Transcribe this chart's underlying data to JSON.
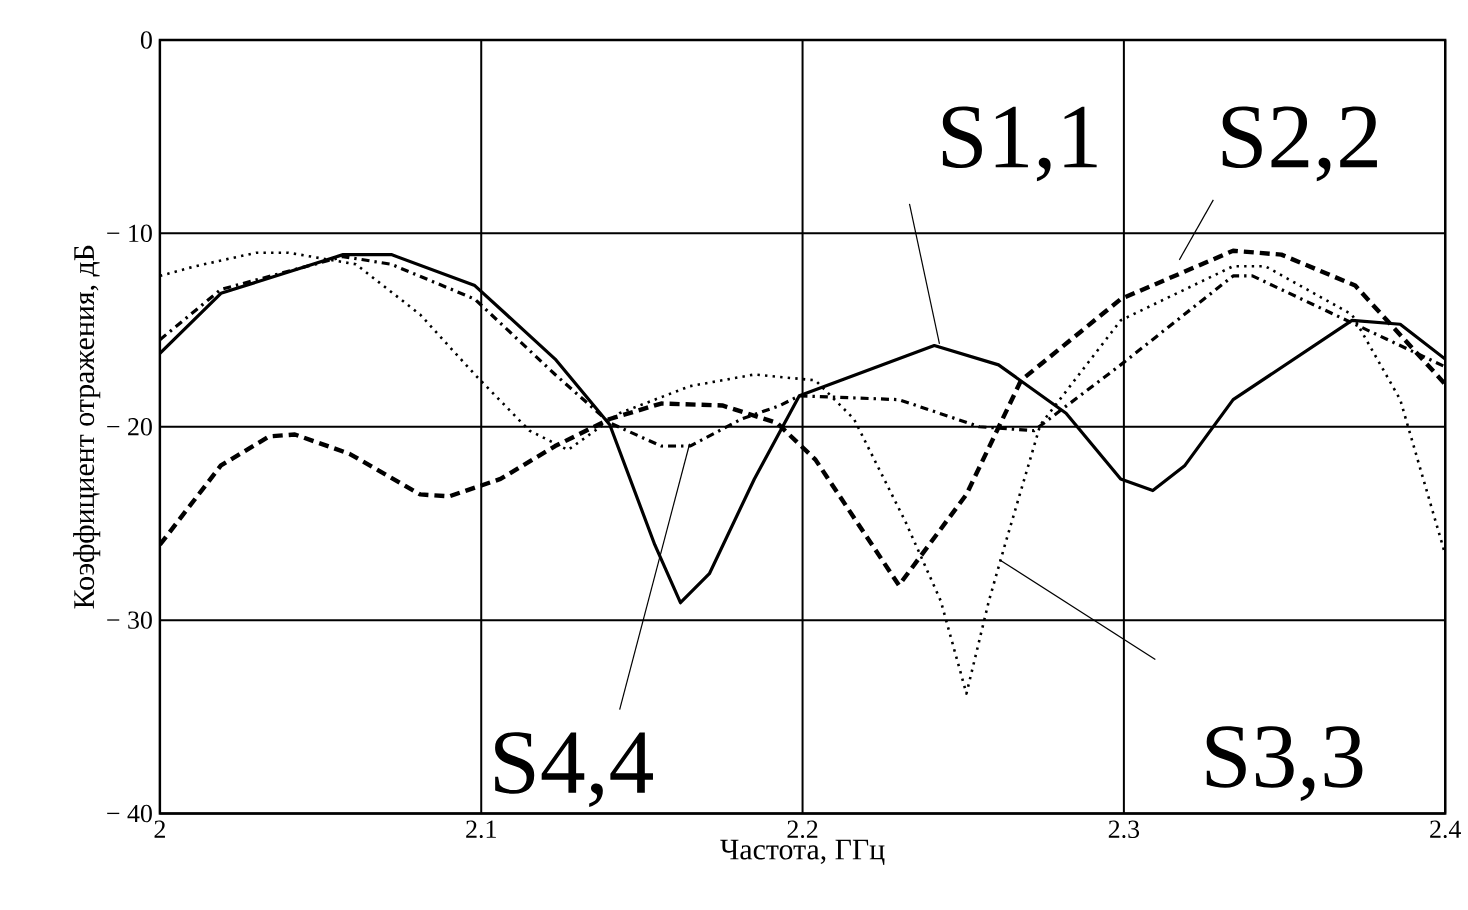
{
  "chart_data": {
    "type": "line",
    "xlabel": "Частота, ГГц",
    "ylabel": "Коэффициент отражения, дБ",
    "xlim": [
      2,
      2.4
    ],
    "ylim": [
      -40,
      0
    ],
    "xticks": [
      2,
      2.1,
      2.2,
      2.3,
      2.4
    ],
    "yticks": [
      {
        "value": -40,
        "label": "− 40"
      },
      {
        "value": -30,
        "label": "− 30"
      },
      {
        "value": -20,
        "label": "− 20"
      },
      {
        "value": -10,
        "label": "− 10"
      },
      0
    ],
    "grid": true,
    "legend": false,
    "series": [
      {
        "name": "S1,1",
        "color": "#000000",
        "line_style": "solid",
        "x": [
          2.0,
          2.019,
          2.057,
          2.072,
          2.098,
          2.123,
          2.14,
          2.154,
          2.162,
          2.171,
          2.185,
          2.199,
          2.241,
          2.261,
          2.282,
          2.299,
          2.309,
          2.319,
          2.334,
          2.371,
          2.386,
          2.4
        ],
        "values": [
          -16.2,
          -13.1,
          -11.1,
          -11.1,
          -12.7,
          -16.5,
          -19.9,
          -26.1,
          -29.1,
          -27.6,
          -22.7,
          -18.4,
          -15.8,
          -16.8,
          -19.3,
          -22.7,
          -23.3,
          -22.0,
          -18.6,
          -14.5,
          -14.7,
          -16.5
        ]
      },
      {
        "name": "S2,2",
        "color": "#000000",
        "line_style": "dashed",
        "x": [
          2.0,
          2.019,
          2.034,
          2.042,
          2.059,
          2.081,
          2.09,
          2.106,
          2.123,
          2.14,
          2.156,
          2.175,
          2.192,
          2.204,
          2.23,
          2.251,
          2.268,
          2.299,
          2.334,
          2.349,
          2.372,
          2.4
        ],
        "values": [
          -26.1,
          -22.0,
          -20.5,
          -20.4,
          -21.4,
          -23.5,
          -23.6,
          -22.7,
          -21.0,
          -19.6,
          -18.8,
          -18.9,
          -19.8,
          -21.7,
          -28.2,
          -23.5,
          -17.6,
          -13.4,
          -10.9,
          -11.1,
          -12.7,
          -17.8
        ]
      },
      {
        "name": "S3,3",
        "color": "#000000",
        "line_style": "dotted",
        "x": [
          2.0,
          2.011,
          2.03,
          2.04,
          2.061,
          2.081,
          2.098,
          2.115,
          2.127,
          2.143,
          2.165,
          2.185,
          2.204,
          2.216,
          2.232,
          2.243,
          2.251,
          2.258,
          2.263,
          2.274,
          2.299,
          2.334,
          2.344,
          2.371,
          2.386,
          2.4
        ],
        "values": [
          -12.2,
          -11.7,
          -11.0,
          -11.0,
          -11.6,
          -14.2,
          -17.3,
          -20.2,
          -21.2,
          -19.3,
          -17.9,
          -17.3,
          -17.6,
          -19.6,
          -24.9,
          -29.0,
          -33.8,
          -29.0,
          -26.1,
          -19.9,
          -14.5,
          -11.7,
          -11.7,
          -14.2,
          -18.6,
          -26.6
        ]
      },
      {
        "name": "S4,4",
        "color": "#000000",
        "line_style": "dashdotted",
        "x": [
          2.0,
          2.019,
          2.057,
          2.072,
          2.098,
          2.123,
          2.14,
          2.156,
          2.165,
          2.181,
          2.193,
          2.199,
          2.23,
          2.255,
          2.272,
          2.299,
          2.334,
          2.34,
          2.4
        ],
        "values": [
          -15.5,
          -12.9,
          -11.2,
          -11.6,
          -13.4,
          -17.3,
          -19.8,
          -21.0,
          -21.0,
          -19.6,
          -18.9,
          -18.4,
          -18.6,
          -20.0,
          -20.2,
          -16.8,
          -12.2,
          -12.2,
          -16.9
        ]
      }
    ]
  }
}
